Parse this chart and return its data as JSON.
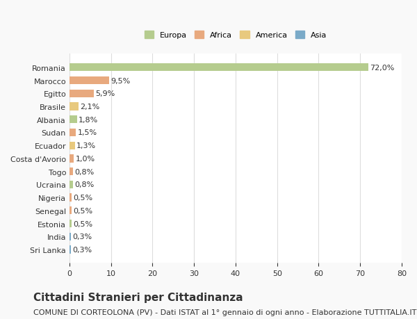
{
  "countries": [
    "Romania",
    "Marocco",
    "Egitto",
    "Brasile",
    "Albania",
    "Sudan",
    "Ecuador",
    "Costa d'Avorio",
    "Togo",
    "Ucraina",
    "Nigeria",
    "Senegal",
    "Estonia",
    "India",
    "Sri Lanka"
  ],
  "values": [
    72.0,
    9.5,
    5.9,
    2.1,
    1.8,
    1.5,
    1.3,
    1.0,
    0.8,
    0.8,
    0.5,
    0.5,
    0.5,
    0.3,
    0.3
  ],
  "labels": [
    "72,0%",
    "9,5%",
    "5,9%",
    "2,1%",
    "1,8%",
    "1,5%",
    "1,3%",
    "1,0%",
    "0,8%",
    "0,8%",
    "0,5%",
    "0,5%",
    "0,5%",
    "0,3%",
    "0,3%"
  ],
  "colors": [
    "#b5cc8e",
    "#e8a97e",
    "#e8a97e",
    "#e8c97e",
    "#b5cc8e",
    "#e8a97e",
    "#e8c97e",
    "#e8a97e",
    "#e8a97e",
    "#b5cc8e",
    "#e8a97e",
    "#e8a97e",
    "#b5cc8e",
    "#7aaac8",
    "#7aaac8"
  ],
  "legend_labels": [
    "Europa",
    "Africa",
    "America",
    "Asia"
  ],
  "legend_colors": [
    "#b5cc8e",
    "#e8a97e",
    "#e8c97e",
    "#7aaac8"
  ],
  "title": "Cittadini Stranieri per Cittadinanza",
  "subtitle": "COMUNE DI CORTEOLONA (PV) - Dati ISTAT al 1° gennaio di ogni anno - Elaborazione TUTTITALIA.IT",
  "xlim": [
    0,
    80
  ],
  "xticks": [
    0,
    10,
    20,
    30,
    40,
    50,
    60,
    70,
    80
  ],
  "background_color": "#f9f9f9",
  "bar_background": "#ffffff",
  "grid_color": "#dddddd",
  "text_color": "#333333",
  "title_fontsize": 11,
  "subtitle_fontsize": 8,
  "label_fontsize": 8,
  "tick_fontsize": 8
}
